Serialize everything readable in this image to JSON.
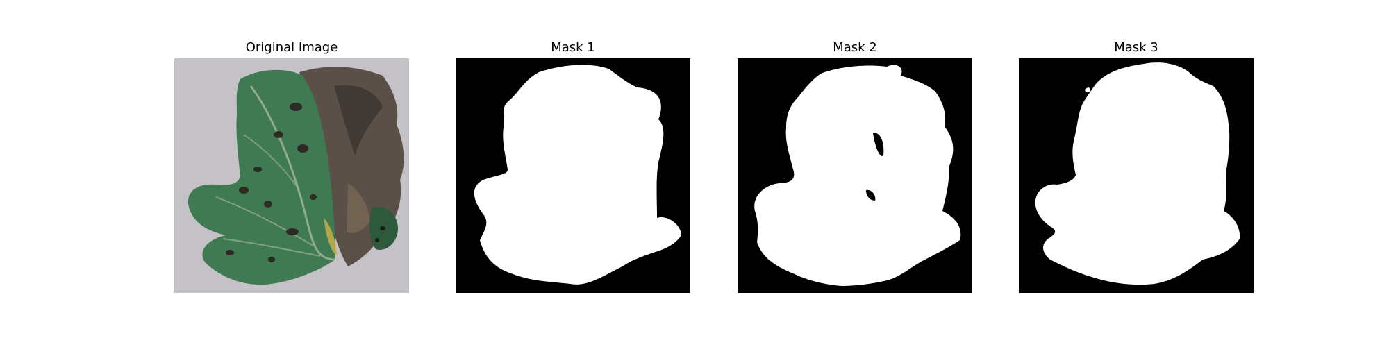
{
  "panels": [
    {
      "title": "Original Image",
      "kind": "photo"
    },
    {
      "title": "Mask 1",
      "kind": "mask"
    },
    {
      "title": "Mask 2",
      "kind": "mask"
    },
    {
      "title": "Mask 3",
      "kind": "mask"
    }
  ],
  "colors": {
    "background": "#ffffff",
    "mask_bg": "#000000",
    "mask_fg": "#ffffff",
    "photo_bg": "#c9c7cb",
    "leaf_green": "#3f7a52",
    "leaf_dark": "#2e5a3c",
    "dead_tissue": "#5a5048"
  }
}
